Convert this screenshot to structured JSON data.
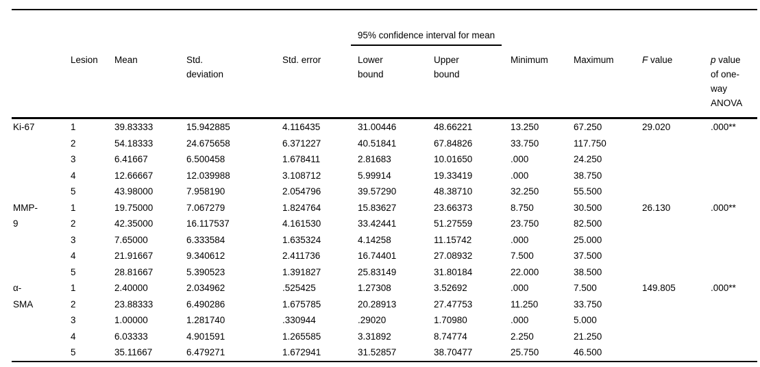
{
  "table": {
    "ci_spanner_label": "95% confidence interval for mean",
    "headers": {
      "marker": "",
      "lesion": "Lesion",
      "mean": "Mean",
      "std_deviation_lines": [
        "Std.",
        "deviation"
      ],
      "std_error": "Std. error",
      "lower_bound_lines": [
        "Lower",
        "bound"
      ],
      "upper_bound_lines": [
        "Upper",
        "bound"
      ],
      "minimum": "Minimum",
      "maximum": "Maximum",
      "f_value_italic": "F",
      "f_value_rest": " value",
      "p_value_italic": "p",
      "p_value_rest": " value",
      "p_value_extra_lines": [
        "of one-",
        "way",
        "ANOVA"
      ]
    },
    "groups": [
      {
        "marker": "Ki-67",
        "marker_lines": [
          "Ki-67"
        ],
        "f_value": "29.020",
        "p_value": ".000**",
        "rows": [
          {
            "lesion": "1",
            "mean": "39.83333",
            "std_deviation": "15.942885",
            "std_error": "4.116435",
            "lower_bound": "31.00446",
            "upper_bound": "48.66221",
            "minimum": "13.250",
            "maximum": "67.250"
          },
          {
            "lesion": "2",
            "mean": "54.18333",
            "std_deviation": "24.675658",
            "std_error": "6.371227",
            "lower_bound": "40.51841",
            "upper_bound": "67.84826",
            "minimum": "33.750",
            "maximum": "117.750"
          },
          {
            "lesion": "3",
            "mean": "6.41667",
            "std_deviation": "6.500458",
            "std_error": "1.678411",
            "lower_bound": "2.81683",
            "upper_bound": "10.01650",
            "minimum": ".000",
            "maximum": "24.250"
          },
          {
            "lesion": "4",
            "mean": "12.66667",
            "std_deviation": "12.039988",
            "std_error": "3.108712",
            "lower_bound": "5.99914",
            "upper_bound": "19.33419",
            "minimum": ".000",
            "maximum": "38.750"
          },
          {
            "lesion": "5",
            "mean": "43.98000",
            "std_deviation": "7.958190",
            "std_error": "2.054796",
            "lower_bound": "39.57290",
            "upper_bound": "48.38710",
            "minimum": "32.250",
            "maximum": "55.500"
          }
        ]
      },
      {
        "marker": "MMP-9",
        "marker_lines": [
          "MMP-",
          "9"
        ],
        "f_value": "26.130",
        "p_value": ".000**",
        "rows": [
          {
            "lesion": "1",
            "mean": "19.75000",
            "std_deviation": "7.067279",
            "std_error": "1.824764",
            "lower_bound": "15.83627",
            "upper_bound": "23.66373",
            "minimum": "8.750",
            "maximum": "30.500"
          },
          {
            "lesion": "2",
            "mean": "42.35000",
            "std_deviation": "16.117537",
            "std_error": "4.161530",
            "lower_bound": "33.42441",
            "upper_bound": "51.27559",
            "minimum": "23.750",
            "maximum": "82.500"
          },
          {
            "lesion": "3",
            "mean": "7.65000",
            "std_deviation": "6.333584",
            "std_error": "1.635324",
            "lower_bound": "4.14258",
            "upper_bound": "11.15742",
            "minimum": ".000",
            "maximum": "25.000"
          },
          {
            "lesion": "4",
            "mean": "21.91667",
            "std_deviation": "9.340612",
            "std_error": "2.411736",
            "lower_bound": "16.74401",
            "upper_bound": "27.08932",
            "minimum": "7.500",
            "maximum": "37.500"
          },
          {
            "lesion": "5",
            "mean": "28.81667",
            "std_deviation": "5.390523",
            "std_error": "1.391827",
            "lower_bound": "25.83149",
            "upper_bound": "31.80184",
            "minimum": "22.000",
            "maximum": "38.500"
          }
        ]
      },
      {
        "marker": "α-SMA",
        "marker_lines": [
          "α-",
          "SMA"
        ],
        "f_value": "149.805",
        "p_value": ".000**",
        "rows": [
          {
            "lesion": "1",
            "mean": "2.40000",
            "std_deviation": "2.034962",
            "std_error": ".525425",
            "lower_bound": "1.27308",
            "upper_bound": "3.52692",
            "minimum": ".000",
            "maximum": "7.500"
          },
          {
            "lesion": "2",
            "mean": "23.88333",
            "std_deviation": "6.490286",
            "std_error": "1.675785",
            "lower_bound": "20.28913",
            "upper_bound": "27.47753",
            "minimum": "11.250",
            "maximum": "33.750"
          },
          {
            "lesion": "3",
            "mean": "1.00000",
            "std_deviation": "1.281740",
            "std_error": ".330944",
            "lower_bound": ".29020",
            "upper_bound": "1.70980",
            "minimum": ".000",
            "maximum": "5.000"
          },
          {
            "lesion": "4",
            "mean": "6.03333",
            "std_deviation": "4.901591",
            "std_error": "1.265585",
            "lower_bound": "3.31892",
            "upper_bound": "8.74774",
            "minimum": "2.250",
            "maximum": "21.250"
          },
          {
            "lesion": "5",
            "mean": "35.11667",
            "std_deviation": "6.479271",
            "std_error": "1.672941",
            "lower_bound": "31.52857",
            "upper_bound": "38.70477",
            "minimum": "25.750",
            "maximum": "46.500"
          }
        ]
      }
    ]
  }
}
